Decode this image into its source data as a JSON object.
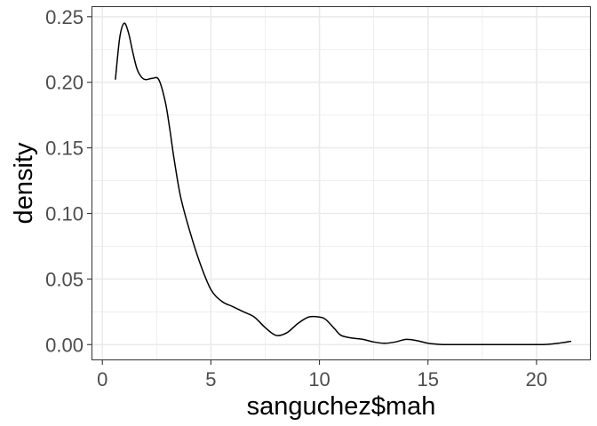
{
  "chart_data": {
    "type": "area",
    "xlabel": "sanguchez$mah",
    "ylabel": "density",
    "xlim": [
      -0.5,
      22.5
    ],
    "ylim": [
      -0.012,
      0.258
    ],
    "x_ticks": [
      0,
      5,
      10,
      15,
      20
    ],
    "x_tick_labels": [
      "0",
      "5",
      "10",
      "15",
      "20"
    ],
    "y_ticks": [
      0,
      0.05,
      0.1,
      0.15,
      0.2,
      0.25
    ],
    "y_tick_labels": [
      "0.00",
      "0.05",
      "0.10",
      "0.15",
      "0.20",
      "0.25"
    ],
    "grid": true,
    "legend": "none",
    "series": [
      {
        "color": "#000000",
        "x": [
          0.6,
          0.8,
          1.0,
          1.2,
          1.4,
          1.6,
          1.8,
          2.0,
          2.3,
          2.6,
          2.9,
          3.1,
          3.3,
          3.6,
          4.0,
          4.5,
          5.0,
          5.5,
          6.0,
          6.5,
          7.0,
          7.5,
          8.0,
          8.5,
          9.0,
          9.5,
          10.0,
          10.3,
          10.7,
          11.0,
          11.5,
          12.0,
          12.5,
          13.0,
          13.5,
          14.0,
          14.5,
          15.0,
          15.5,
          16.0,
          17.0,
          18.0,
          19.0,
          20.0,
          20.5,
          21.0,
          21.6
        ],
        "y": [
          0.202,
          0.234,
          0.245,
          0.238,
          0.223,
          0.21,
          0.204,
          0.202,
          0.203,
          0.202,
          0.185,
          0.165,
          0.142,
          0.113,
          0.088,
          0.062,
          0.042,
          0.033,
          0.029,
          0.025,
          0.021,
          0.013,
          0.007,
          0.009,
          0.016,
          0.021,
          0.021,
          0.019,
          0.012,
          0.007,
          0.005,
          0.004,
          0.002,
          0.001,
          0.002,
          0.004,
          0.003,
          0.001,
          0.0002,
          0.0,
          0.0,
          0.0,
          0.0,
          0.0,
          0.0002,
          0.001,
          0.0025
        ]
      }
    ]
  }
}
